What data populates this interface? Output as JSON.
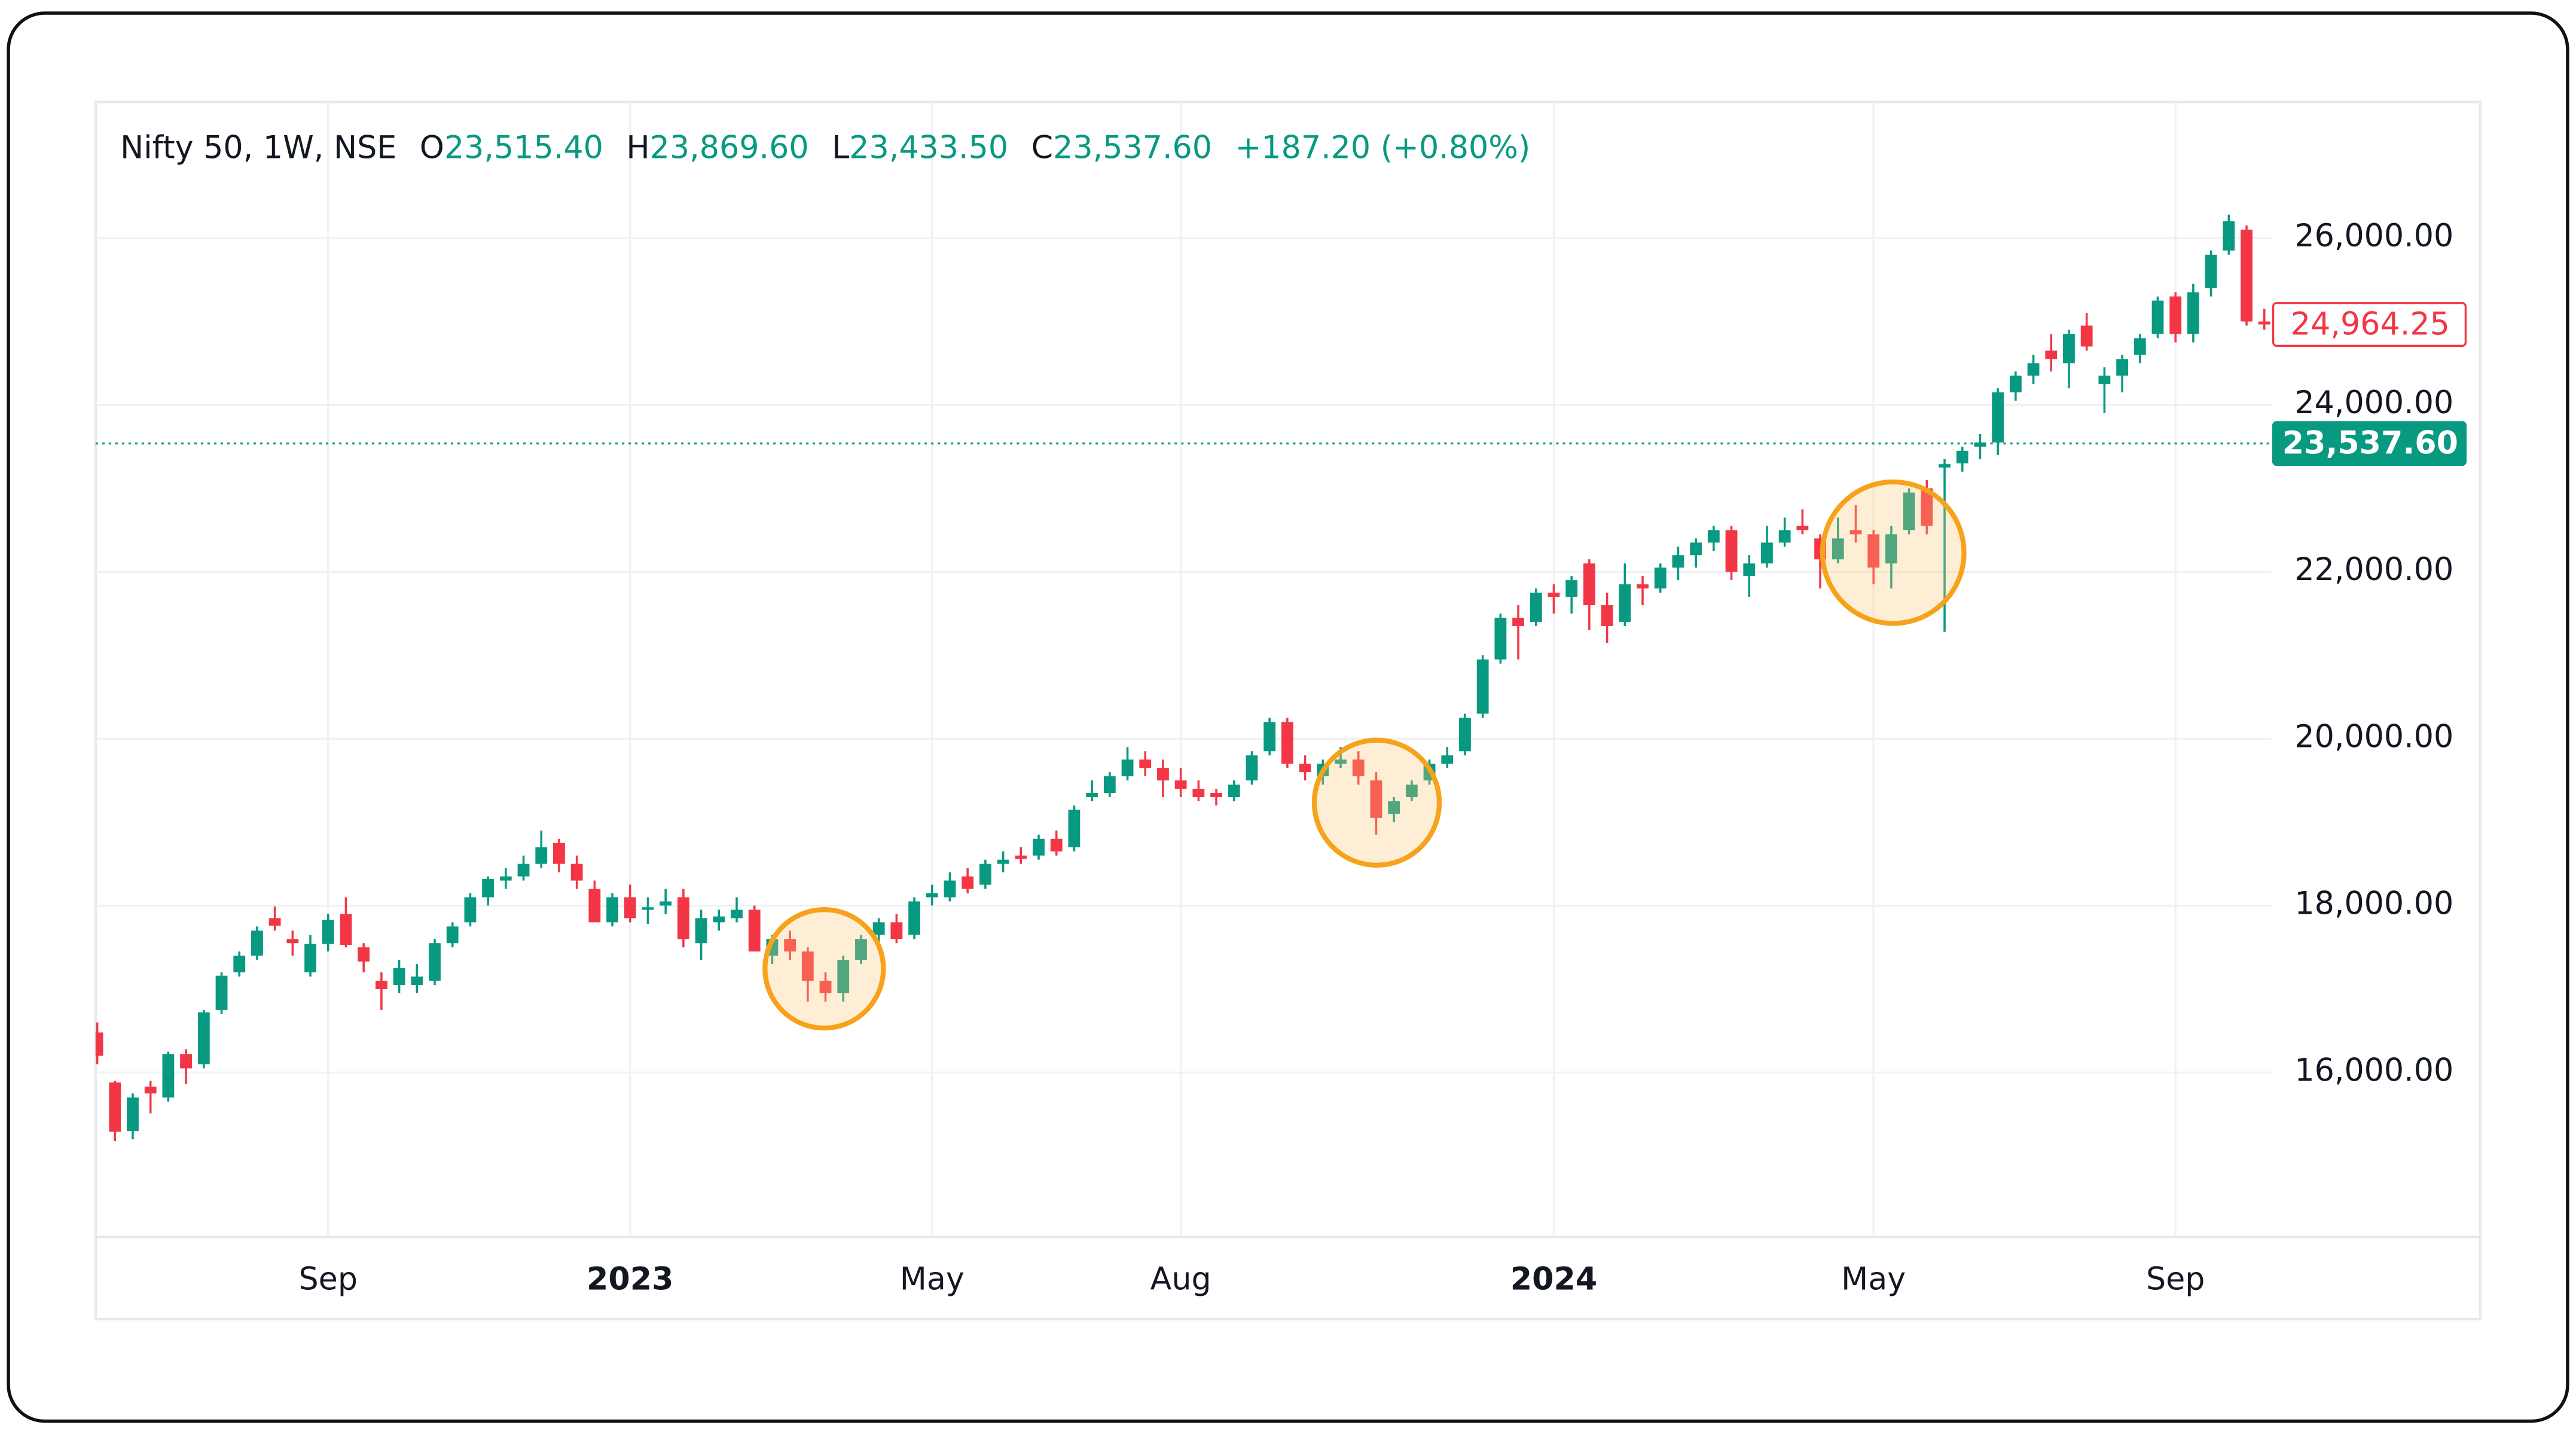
{
  "chart_data": {
    "type": "candlestick",
    "legend": {
      "symbol": "Nifty 50, 1W, NSE",
      "fields": [
        {
          "key": "O",
          "value": "23,515.40"
        },
        {
          "key": "H",
          "value": "23,869.60"
        },
        {
          "key": "L",
          "value": "23,433.50"
        },
        {
          "key": "C",
          "value": "23,537.60"
        }
      ],
      "change": "+187.20 (+0.80%)"
    },
    "up_color": "#089981",
    "down_color": "#f23645",
    "categories": [
      null,
      null,
      null,
      null,
      null,
      null,
      null,
      null,
      null,
      null,
      null,
      null,
      null,
      "Sep",
      null,
      null,
      null,
      null,
      null,
      null,
      null,
      null,
      null,
      null,
      null,
      null,
      null,
      null,
      null,
      null,
      "2023",
      null,
      null,
      null,
      null,
      null,
      null,
      null,
      null,
      null,
      null,
      null,
      null,
      null,
      null,
      null,
      null,
      "May",
      null,
      null,
      null,
      null,
      null,
      null,
      null,
      null,
      null,
      null,
      null,
      null,
      null,
      "Aug",
      null,
      null,
      null,
      null,
      null,
      null,
      null,
      null,
      null,
      null,
      null,
      null,
      null,
      null,
      null,
      null,
      null,
      null,
      null,
      null,
      "2024",
      null,
      null,
      null,
      null,
      null,
      null,
      null,
      null,
      null,
      null,
      null,
      null,
      null,
      null,
      null,
      null,
      null,
      "May",
      null,
      null,
      null,
      null,
      null,
      null,
      null,
      null,
      null,
      null,
      null,
      null,
      null,
      null,
      null,
      null,
      "Sep",
      null,
      null,
      null,
      null,
      null
    ],
    "open": [
      16480,
      15880,
      15300,
      15830,
      15700,
      16220,
      16100,
      16750,
      17200,
      17400,
      17850,
      17600,
      17200,
      17540,
      17900,
      17500,
      17100,
      17050,
      17050,
      17100,
      17550,
      17800,
      18100,
      18300,
      18350,
      18500,
      18750,
      18500,
      18200,
      17800,
      18100,
      17950,
      18000,
      18100,
      17550,
      17800,
      17850,
      17950,
      17400,
      17600,
      17450,
      17100,
      16950,
      17350,
      17650,
      17800,
      17650,
      18100,
      18100,
      18350,
      18250,
      18500,
      18600,
      18600,
      18800,
      18700,
      19300,
      19350,
      19550,
      19750,
      19650,
      19500,
      19400,
      19350,
      19300,
      19500,
      19850,
      20200,
      19700,
      19550,
      19700,
      19750,
      19500,
      19100,
      19300,
      19500,
      19700,
      19850,
      20300,
      20950,
      21450,
      21400,
      21750,
      21700,
      22100,
      21600,
      21400,
      21850,
      21800,
      22050,
      22200,
      22350,
      22500,
      21950,
      22100,
      22350,
      22550,
      22400,
      22150,
      22500,
      22450,
      22100,
      22500,
      23000,
      23250,
      23300,
      23500,
      23550,
      24150,
      24350,
      24650,
      24500,
      24950,
      24250,
      24350,
      24600,
      24850,
      25300,
      24850,
      25400,
      25850,
      26100,
      25000
    ],
    "high": [
      16600,
      15900,
      15750,
      15900,
      16250,
      16280,
      16750,
      17200,
      17450,
      17750,
      17990,
      17700,
      17650,
      17900,
      18100,
      17550,
      17200,
      17350,
      17300,
      17600,
      17800,
      18150,
      18350,
      18450,
      18600,
      18900,
      18800,
      18600,
      18300,
      18150,
      18250,
      18100,
      18200,
      18200,
      17950,
      17950,
      18100,
      18000,
      17650,
      17700,
      17500,
      17200,
      17400,
      17650,
      17850,
      17900,
      18100,
      18250,
      18400,
      18450,
      18550,
      18650,
      18700,
      18850,
      18900,
      19200,
      19500,
      19600,
      19900,
      19850,
      19750,
      19650,
      19500,
      19400,
      19500,
      19850,
      20250,
      20250,
      19800,
      19750,
      19900,
      19850,
      19600,
      19300,
      19500,
      19750,
      19900,
      20300,
      21000,
      21500,
      21600,
      21800,
      21850,
      21950,
      22150,
      21750,
      22100,
      21950,
      22100,
      22300,
      22400,
      22550,
      22550,
      22200,
      22550,
      22650,
      22750,
      22450,
      22650,
      22800,
      22500,
      22550,
      23000,
      23100,
      23350,
      23500,
      23650,
      24200,
      24400,
      24600,
      24850,
      24900,
      25100,
      24450,
      24600,
      24850,
      25300,
      25350,
      25450,
      25850,
      26280,
      26150,
      25150
    ],
    "low": [
      16100,
      15180,
      15200,
      15510,
      15650,
      15860,
      16050,
      16700,
      17150,
      17350,
      17700,
      17400,
      17150,
      17450,
      17500,
      17200,
      16750,
      16950,
      16950,
      17050,
      17500,
      17750,
      18000,
      18200,
      18300,
      18450,
      18400,
      18200,
      17800,
      17750,
      17800,
      17780,
      17900,
      17500,
      17350,
      17700,
      17800,
      17450,
      17300,
      17350,
      16850,
      16850,
      16850,
      17300,
      17550,
      17550,
      17600,
      18000,
      18050,
      18150,
      18200,
      18400,
      18500,
      18550,
      18600,
      18650,
      19250,
      19300,
      19500,
      19550,
      19300,
      19300,
      19250,
      19200,
      19250,
      19450,
      19800,
      19650,
      19500,
      19450,
      19650,
      19450,
      18850,
      19000,
      19250,
      19450,
      19650,
      19800,
      20250,
      20900,
      20950,
      21350,
      21500,
      21500,
      21300,
      21150,
      21350,
      21600,
      21750,
      21900,
      22050,
      22250,
      21900,
      21700,
      22050,
      22300,
      22450,
      21800,
      22100,
      22350,
      21850,
      21800,
      22450,
      22450,
      21280,
      23200,
      23350,
      23400,
      24050,
      24250,
      24400,
      24200,
      24650,
      23900,
      24150,
      24500,
      24800,
      24750,
      24750,
      25300,
      25800,
      24950,
      24900
    ],
    "close": [
      16200,
      15290,
      15700,
      15750,
      16220,
      16050,
      16720,
      17160,
      17400,
      17700,
      17760,
      17550,
      17540,
      17830,
      17530,
      17330,
      17000,
      17250,
      17150,
      17550,
      17750,
      18100,
      18320,
      18350,
      18500,
      18700,
      18500,
      18300,
      17800,
      18100,
      17850,
      17980,
      18050,
      17600,
      17850,
      17870,
      17950,
      17450,
      17600,
      17450,
      17100,
      16950,
      17350,
      17600,
      17800,
      17600,
      18050,
      18150,
      18300,
      18200,
      18500,
      18550,
      18560,
      18800,
      18650,
      19150,
      19350,
      19550,
      19750,
      19650,
      19500,
      19400,
      19300,
      19300,
      19450,
      19800,
      20200,
      19700,
      19600,
      19700,
      19750,
      19550,
      19050,
      19250,
      19450,
      19700,
      19800,
      20250,
      20950,
      21450,
      21350,
      21750,
      21700,
      21900,
      21600,
      21350,
      21850,
      21800,
      22050,
      22200,
      22350,
      22500,
      22000,
      22100,
      22350,
      22500,
      22500,
      22150,
      22400,
      22450,
      22050,
      22450,
      22950,
      22550,
      23290,
      23450,
      23550,
      24150,
      24350,
      24500,
      24550,
      24850,
      24700,
      24350,
      24550,
      24800,
      25250,
      24850,
      25350,
      25800,
      26200,
      25000,
      24964.25
    ],
    "ylim": [
      14030,
      27630
    ],
    "yticks": [
      {
        "value": 16000,
        "label": "16,000.00"
      },
      {
        "value": 18000,
        "label": "18,000.00"
      },
      {
        "value": 20000,
        "label": "20,000.00"
      },
      {
        "value": 22000,
        "label": "22,000.00"
      },
      {
        "value": 24000,
        "label": "24,000.00"
      },
      {
        "value": 26000,
        "label": "26,000.00"
      }
    ],
    "grid": true,
    "price_labels": [
      {
        "value": 24964.25,
        "label": "24,964.25",
        "color": "#f23645",
        "filled": false
      },
      {
        "value": 23537.6,
        "label": "23,537.60",
        "color": "#089981",
        "filled": true,
        "line": "dotted"
      }
    ]
  }
}
